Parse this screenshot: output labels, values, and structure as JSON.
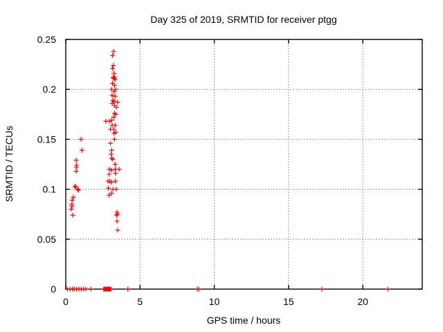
{
  "window": {
    "background": "#ffffff"
  },
  "colors": {
    "marker": "#ff0000",
    "grid": "#999999",
    "axis": "#000000",
    "text": "#000000"
  },
  "chart_data": {
    "type": "scatter",
    "title": "Day 325 of 2019, SRMTID for receiver ptgg",
    "xlabel": "GPS time / hours",
    "ylabel": "SRMTID / TECUs",
    "xlim": [
      0,
      24
    ],
    "ylim": [
      0,
      0.25
    ],
    "grid": true,
    "legend_position": "none",
    "xticks": {
      "values": [
        0,
        5,
        10,
        15,
        20
      ],
      "labels": [
        "0",
        "5",
        "10",
        "15",
        "20"
      ]
    },
    "yticks": {
      "values": [
        0,
        0.05,
        0.1,
        0.15,
        0.2,
        0.25
      ],
      "labels": [
        "0",
        "0.05",
        "0.1",
        "0.15",
        "0.2",
        "0.25"
      ]
    },
    "series": [
      {
        "name": "SRMTID",
        "marker": "plus",
        "color": "#ff0000",
        "points": [
          [
            0.11,
            0
          ],
          [
            0.29,
            0
          ],
          [
            0.45,
            0
          ],
          [
            0.57,
            0
          ],
          [
            0.73,
            0
          ],
          [
            0.89,
            0
          ],
          [
            1.04,
            0
          ],
          [
            1.2,
            0
          ],
          [
            1.35,
            0
          ],
          [
            1.69,
            0
          ],
          [
            2.55,
            0
          ],
          [
            2.6,
            0
          ],
          [
            2.64,
            0
          ],
          [
            2.69,
            0
          ],
          [
            2.73,
            0
          ],
          [
            2.78,
            0
          ],
          [
            2.82,
            0
          ],
          [
            2.87,
            0
          ],
          [
            2.91,
            0
          ],
          [
            2.96,
            0
          ],
          [
            3.0,
            0
          ],
          [
            3.04,
            0
          ],
          [
            4.18,
            0
          ],
          [
            8.85,
            0
          ],
          [
            8.96,
            0
          ],
          [
            17.24,
            0
          ],
          [
            21.67,
            0
          ],
          [
            0.37,
            0.08
          ],
          [
            0.41,
            0.085
          ],
          [
            0.42,
            0.083
          ],
          [
            0.43,
            0.089
          ],
          [
            0.47,
            0.074
          ],
          [
            0.51,
            0.092
          ],
          [
            0.62,
            0.103
          ],
          [
            0.67,
            0.102
          ],
          [
            0.7,
            0.118
          ],
          [
            0.7,
            0.129
          ],
          [
            0.72,
            0.122
          ],
          [
            0.73,
            0.124
          ],
          [
            0.81,
            0.1
          ],
          [
            0.85,
            0.099
          ],
          [
            1.03,
            0.15
          ],
          [
            1.09,
            0.139
          ],
          [
            3.22,
            0.238
          ],
          [
            3.15,
            0.234
          ],
          [
            3.2,
            0.224
          ],
          [
            3.15,
            0.221
          ],
          [
            3.25,
            0.216
          ],
          [
            3.18,
            0.212
          ],
          [
            3.23,
            0.211
          ],
          [
            3.28,
            0.212
          ],
          [
            3.32,
            0.21
          ],
          [
            3.15,
            0.206
          ],
          [
            3.28,
            0.204
          ],
          [
            3.09,
            0.2
          ],
          [
            3.37,
            0.2
          ],
          [
            3.25,
            0.198
          ],
          [
            3.12,
            0.194
          ],
          [
            3.32,
            0.193
          ],
          [
            3.17,
            0.189
          ],
          [
            3.25,
            0.188
          ],
          [
            3.49,
            0.187
          ],
          [
            3.12,
            0.186
          ],
          [
            3.28,
            0.184
          ],
          [
            3.4,
            0.182
          ],
          [
            3.28,
            0.176
          ],
          [
            3.37,
            0.175
          ],
          [
            3.22,
            0.172
          ],
          [
            2.7,
            0.168
          ],
          [
            2.94,
            0.168
          ],
          [
            3.09,
            0.169
          ],
          [
            3.12,
            0.164
          ],
          [
            3.32,
            0.164
          ],
          [
            3.01,
            0.16
          ],
          [
            3.22,
            0.16
          ],
          [
            3.37,
            0.157
          ],
          [
            3.25,
            0.156
          ],
          [
            3.28,
            0.15
          ],
          [
            3.01,
            0.146
          ],
          [
            3.09,
            0.139
          ],
          [
            3.06,
            0.135
          ],
          [
            3.09,
            0.131
          ],
          [
            3.17,
            0.13
          ],
          [
            3.32,
            0.125
          ],
          [
            2.94,
            0.12
          ],
          [
            3.09,
            0.119
          ],
          [
            3.34,
            0.12
          ],
          [
            3.59,
            0.12
          ],
          [
            2.92,
            0.115
          ],
          [
            3.35,
            0.116
          ],
          [
            2.84,
            0.108
          ],
          [
            2.95,
            0.108
          ],
          [
            3.08,
            0.107
          ],
          [
            3.34,
            0.108
          ],
          [
            2.87,
            0.101
          ],
          [
            3.18,
            0.1
          ],
          [
            3.39,
            0.1
          ],
          [
            2.92,
            0.094
          ],
          [
            3.08,
            0.096
          ],
          [
            3.45,
            0.077
          ],
          [
            3.49,
            0.075
          ],
          [
            3.42,
            0.074
          ],
          [
            3.45,
            0.068
          ],
          [
            3.49,
            0.059
          ]
        ]
      }
    ]
  }
}
